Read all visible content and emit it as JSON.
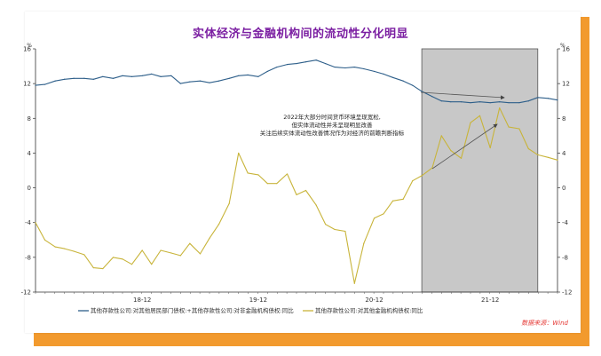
{
  "chart_data": {
    "type": "line",
    "title": "实体经济与金融机构间的流动性分化明显",
    "y_unit_left": "%",
    "y_unit_right": "%",
    "ylim": [
      -12,
      16
    ],
    "y_ticks": [
      -12,
      -8,
      -4,
      0,
      4,
      8,
      12,
      16
    ],
    "x_tick_labels": [
      "18-12",
      "19-12",
      "20-12",
      "21-12"
    ],
    "x_range": [
      2018.0,
      2022.5
    ],
    "shaded_region": {
      "x": [
        2021.33,
        2022.33
      ]
    },
    "annotation": [
      "2022年大部分时间货币环境呈现宽松,",
      "但实体流动性并未呈现明显改善",
      "关注后续实体流动性改善情况作为对经济的前瞻判断指标"
    ],
    "legend": [
      "其他存款性公司:对其他居民部门债权:+其他存款性公司:对非金融机构债权:同比",
      "其他存款性公司:对其他金融机构债权:同比"
    ],
    "source": "数据来源：Wind",
    "series": [
      {
        "color": "#2e5f8a",
        "x": [
          2018.0,
          2018.08,
          2018.17,
          2018.25,
          2018.33,
          2018.42,
          2018.5,
          2018.58,
          2018.67,
          2018.75,
          2018.83,
          2018.92,
          2019.0,
          2019.08,
          2019.17,
          2019.25,
          2019.33,
          2019.42,
          2019.5,
          2019.58,
          2019.67,
          2019.75,
          2019.83,
          2019.92,
          2020.0,
          2020.08,
          2020.17,
          2020.25,
          2020.33,
          2020.42,
          2020.5,
          2020.58,
          2020.67,
          2020.75,
          2020.83,
          2020.92,
          2021.0,
          2021.08,
          2021.17,
          2021.25,
          2021.33,
          2021.42,
          2021.5,
          2021.58,
          2021.67,
          2021.75,
          2021.83,
          2021.92,
          2022.0,
          2022.08,
          2022.17,
          2022.25,
          2022.33,
          2022.42,
          2022.5
        ],
        "y": [
          11.8,
          11.9,
          12.3,
          12.5,
          12.6,
          12.6,
          12.5,
          12.8,
          12.6,
          12.9,
          12.8,
          12.9,
          13.1,
          12.8,
          12.9,
          12.0,
          12.2,
          12.3,
          12.1,
          12.3,
          12.6,
          12.9,
          13.0,
          12.8,
          13.4,
          13.9,
          14.2,
          14.3,
          14.5,
          14.7,
          14.3,
          13.9,
          13.8,
          13.9,
          13.7,
          13.4,
          13.1,
          12.7,
          12.3,
          11.8,
          11.1,
          10.5,
          10.0,
          9.9,
          9.9,
          9.8,
          9.9,
          9.8,
          9.9,
          9.8,
          9.8,
          10.0,
          10.4,
          10.3,
          10.1
        ]
      },
      {
        "color": "#c8b43a",
        "x": [
          2018.0,
          2018.08,
          2018.17,
          2018.25,
          2018.33,
          2018.42,
          2018.5,
          2018.58,
          2018.67,
          2018.75,
          2018.83,
          2018.92,
          2019.0,
          2019.08,
          2019.17,
          2019.25,
          2019.33,
          2019.42,
          2019.5,
          2019.58,
          2019.67,
          2019.75,
          2019.83,
          2019.92,
          2020.0,
          2020.08,
          2020.17,
          2020.25,
          2020.33,
          2020.42,
          2020.5,
          2020.58,
          2020.67,
          2020.75,
          2020.83,
          2020.92,
          2021.0,
          2021.08,
          2021.17,
          2021.25,
          2021.33,
          2021.42,
          2021.5,
          2021.58,
          2021.67,
          2021.75,
          2021.83,
          2021.92,
          2022.0,
          2022.08,
          2022.17,
          2022.25,
          2022.33,
          2022.42,
          2022.5
        ],
        "y": [
          -4.0,
          -6.0,
          -6.8,
          -7.0,
          -7.3,
          -7.7,
          -9.2,
          -9.3,
          -8.0,
          -8.2,
          -8.8,
          -7.2,
          -8.8,
          -7.2,
          -7.5,
          -7.8,
          -6.4,
          -7.6,
          -5.8,
          -4.2,
          -1.8,
          4.0,
          1.7,
          1.5,
          0.5,
          0.5,
          1.6,
          -0.8,
          -0.3,
          -2.0,
          -4.2,
          -4.8,
          -5.0,
          -11.0,
          -6.4,
          -3.5,
          -3.0,
          -1.5,
          -1.3,
          0.8,
          1.4,
          2.3,
          6.0,
          4.3,
          3.4,
          7.5,
          8.3,
          4.6,
          9.2,
          7.0,
          6.8,
          4.5,
          3.8,
          3.5,
          3.2
        ]
      }
    ]
  }
}
